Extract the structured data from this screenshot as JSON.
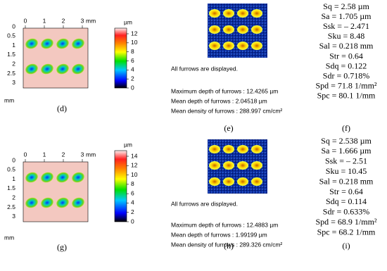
{
  "rows": [
    {
      "map": {
        "x_ticks": [
          "0",
          "1",
          "2",
          "3"
        ],
        "x_unit": "mm",
        "y_ticks": [
          "0",
          "0.5",
          "1",
          "1.5",
          "2",
          "2.5",
          "3"
        ],
        "y_unit": "mm",
        "colorbar": {
          "unit": "µm",
          "ticks": [
            "12",
            "10",
            "8",
            "6",
            "4",
            "2",
            "0"
          ]
        },
        "label": "(d)"
      },
      "furrows": {
        "note": "All furrows are displayed.",
        "lines": [
          "Maximum depth of furrows : 12.4265 µm",
          "Mean depth of furrows : 2.04518 µm",
          "Mean density of furrows : 288.997 cm/cm²"
        ],
        "label": "(e)"
      },
      "params": {
        "items": [
          "Sq = 2.58 µm",
          "Sa = 1.705 µm",
          "Ssk = – 2.471",
          "Sku = 8.48",
          "Sal = 0.218 mm",
          "Str = 0.64",
          "Sdq = 0.122",
          "Sdr = 0.718%",
          "Spd = 71.8 1/mm²",
          "Spc = 80.1 1/mm"
        ],
        "label": "(f)"
      }
    },
    {
      "map": {
        "x_ticks": [
          "0",
          "1",
          "2",
          "3"
        ],
        "x_unit": "mm",
        "y_ticks": [
          "0",
          "0.5",
          "1",
          "1.5",
          "2",
          "2.5",
          "3"
        ],
        "y_unit": "mm",
        "colorbar": {
          "unit": "µm",
          "ticks": [
            "14",
            "12",
            "10",
            "8",
            "6",
            "4",
            "2",
            "0"
          ]
        },
        "label": "(g)"
      },
      "furrows": {
        "note": "All furrows are displayed.",
        "lines": [
          "Maximum depth of furrows : 12.4883 µm",
          "Mean depth of furrows : 1.99199 µm",
          "Mean density of furrows : 289.326 cm/cm²"
        ],
        "label": "(h)"
      },
      "params": {
        "items": [
          "Sq = 2.538 µm",
          "Sa = 1.666 µm",
          "Ssk = – 2.51",
          "Sku = 10.45",
          "Sal = 0.218 mm",
          "Str = 0.64",
          "Sdq = 0.114",
          "Sdr = 0.633%",
          "Spd = 68.9 1/mm²",
          "Spc = 68.2 1/mm"
        ],
        "label": "(i)"
      }
    }
  ]
}
